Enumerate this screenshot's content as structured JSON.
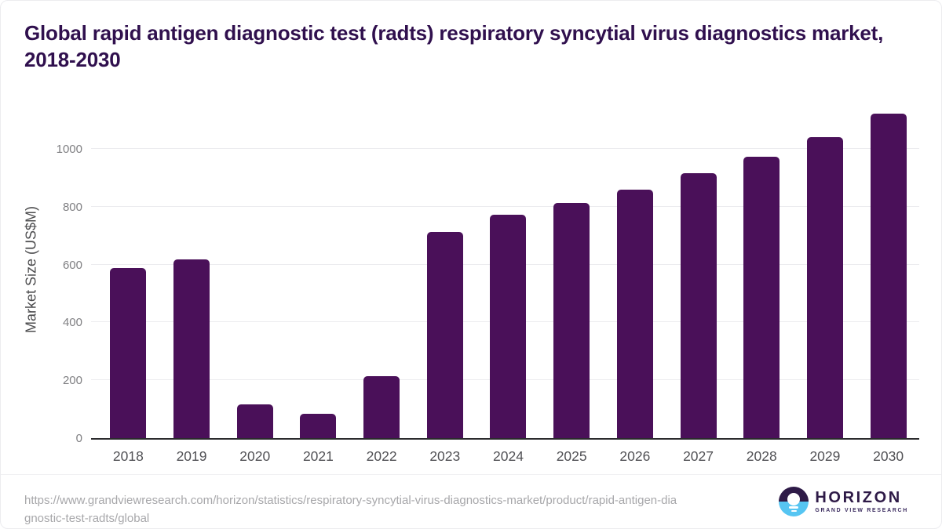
{
  "title": "Global rapid antigen diagnostic test (radts) respiratory syncytial virus diagnostics market, 2018-2030",
  "chart_data": {
    "type": "bar",
    "title": "Global rapid antigen diagnostic test (radts) respiratory syncytial virus diagnostics market, 2018-2030",
    "categories": [
      "2018",
      "2019",
      "2020",
      "2021",
      "2022",
      "2023",
      "2024",
      "2025",
      "2026",
      "2027",
      "2028",
      "2029",
      "2030"
    ],
    "values": [
      588,
      617,
      116,
      83,
      214,
      713,
      772,
      812,
      860,
      916,
      973,
      1042,
      1122
    ],
    "xlabel": "",
    "ylabel": "Market Size (US$M)",
    "yticks": [
      0,
      200,
      400,
      600,
      800,
      1000
    ],
    "ylim": [
      0,
      1165
    ],
    "grid": "horizontal",
    "legend": "none",
    "bar_color": "#4A1059"
  },
  "footer": {
    "source_lines": [
      "https://www.grandviewresearch.com/horizon/statistics/respiratory-syncytial-virus-diagnostics-market/product/rapid-antigen-dia",
      "gnostic-test-radts/global"
    ],
    "logo": {
      "name": "HORIZON",
      "tagline": "GRAND VIEW RESEARCH"
    }
  },
  "colors": {
    "bar": "#4A1059",
    "title_text": "#30104E",
    "gridline": "#ececef",
    "axis_line": "#2b2b2d",
    "y_tick_text": "#7f7f82",
    "x_tick_text": "#515155",
    "source_text": "#a7a7aa",
    "logo_purple": "#2E1A47",
    "logo_blue": "#56C5F2"
  }
}
